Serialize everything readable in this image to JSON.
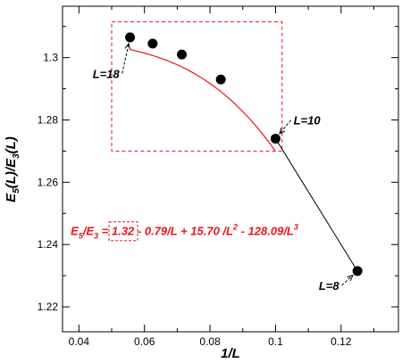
{
  "chart_data": {
    "type": "line",
    "xlabel": "1/L",
    "ylabel_parts": {
      "e": "E",
      "sub1": "5",
      "mid": "(L)/E",
      "sub2": "3",
      "end": "(L)"
    },
    "xlim": [
      0.035,
      0.1375
    ],
    "ylim": [
      1.212,
      1.3165
    ],
    "xticks": [
      0.04,
      0.06,
      0.08,
      0.1,
      0.12
    ],
    "xtick_labels": [
      "0.04",
      "0.06",
      "0.08",
      "0.1",
      "0.12"
    ],
    "yticks": [
      1.22,
      1.24,
      1.26,
      1.28,
      1.3
    ],
    "ytick_labels": [
      "1.22",
      "1.24",
      "1.26",
      "1.28",
      "1.3"
    ],
    "grid": false,
    "points": {
      "x": [
        0.0556,
        0.0625,
        0.0714,
        0.0833,
        0.1,
        0.125
      ],
      "y": [
        1.3065,
        1.3045,
        1.301,
        1.293,
        1.274,
        1.2315
      ]
    },
    "fit_curve": {
      "color": "#e8141c",
      "x_range": [
        0.0556,
        0.1
      ],
      "coefficients": [
        1.32,
        -0.79,
        15.7,
        -128.09
      ]
    },
    "data_line_color": "#000000",
    "highlight_box": {
      "x": [
        0.05,
        0.102
      ],
      "y": [
        1.27,
        1.3115
      ],
      "color": "#e8141c"
    },
    "annotations": [
      {
        "text": "L=18",
        "x": 0.0442,
        "y": 1.2935,
        "arrow_to": [
          0.0556,
          1.3065
        ]
      },
      {
        "text": "L=10",
        "x": 0.1055,
        "y": 1.2785,
        "arrow_to": [
          0.1,
          1.274
        ]
      },
      {
        "text": "L=8",
        "x": 0.1132,
        "y": 1.2255,
        "arrow_to": [
          0.125,
          1.2315
        ]
      }
    ],
    "formula": {
      "E1": "E",
      "s1": "5",
      "slash": "/E",
      "s2": "3",
      "eq": " = ",
      "boxed": "1.32",
      "rest1": " - 0.79/L + 15.70 /L",
      "p2": "2",
      "rest2": " - 128.09/L",
      "p3": "3",
      "color": "#e8141c",
      "anchor": [
        0.0375,
        1.243
      ]
    }
  }
}
